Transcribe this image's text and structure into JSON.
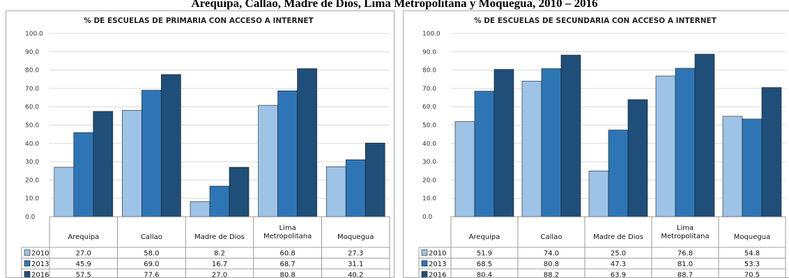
{
  "page_title": "Arequipa, Callao, Madre de Dios, Lima Metropolitana y Moquegua, 2010 – 2016",
  "colors": {
    "2010": "#9dc3e6",
    "2013": "#2e75b6",
    "2016": "#1f4e79"
  },
  "chart_data": [
    {
      "type": "bar",
      "title": "% DE ESCUELAS DE PRIMARIA CON ACCESO A INTERNET",
      "categories": [
        "Arequipa",
        "Callao",
        "Madre de Dios",
        "Lima Metropolitana",
        "Moquegua"
      ],
      "ylim": [
        0,
        100
      ],
      "yticks": [
        "100.0",
        "90.0",
        "80.0",
        "70.0",
        "60.0",
        "50.0",
        "40.0",
        "30.0",
        "20.0",
        "10.0",
        "0.0"
      ],
      "grid": true,
      "legend": "data-table",
      "series": [
        {
          "name": "2010",
          "values": [
            27.0,
            58.0,
            8.2,
            60.8,
            27.3
          ],
          "labels": [
            "27.0",
            "58.0",
            "8.2",
            "60.8",
            "27.3"
          ]
        },
        {
          "name": "2013",
          "values": [
            45.9,
            69.0,
            16.7,
            68.7,
            31.1
          ],
          "labels": [
            "45.9",
            "69.0",
            "16.7",
            "68.7",
            "31.1"
          ]
        },
        {
          "name": "2016",
          "values": [
            57.5,
            77.6,
            27.0,
            80.8,
            40.2
          ],
          "labels": [
            "57.5",
            "77.6",
            "27.0",
            "80.8",
            "40.2"
          ]
        }
      ]
    },
    {
      "type": "bar",
      "title": "% DE ESCUELAS DE SECUNDARIA CON ACCESO A INTERNET",
      "categories": [
        "Arequipa",
        "Callao",
        "Madre de Dios",
        "Lima Metropolitana",
        "Moquegua"
      ],
      "ylim": [
        0,
        100
      ],
      "yticks": [
        "100.0",
        "90.0",
        "80.0",
        "70.0",
        "60.0",
        "50.0",
        "40.0",
        "30.0",
        "20.0",
        "10.0",
        "0.0"
      ],
      "grid": true,
      "legend": "data-table",
      "series": [
        {
          "name": "2010",
          "values": [
            51.9,
            74.0,
            25.0,
            76.8,
            54.8
          ],
          "labels": [
            "51.9",
            "74.0",
            "25.0",
            "76.8",
            "54.8"
          ]
        },
        {
          "name": "2013",
          "values": [
            68.5,
            80.8,
            47.3,
            81.0,
            53.3
          ],
          "labels": [
            "68.5",
            "80.8",
            "47.3",
            "81.0",
            "53.3"
          ]
        },
        {
          "name": "2016",
          "values": [
            80.4,
            88.2,
            63.9,
            88.7,
            70.5
          ],
          "labels": [
            "80.4",
            "88.2",
            "63.9",
            "88.7",
            "70.5"
          ]
        }
      ]
    }
  ]
}
